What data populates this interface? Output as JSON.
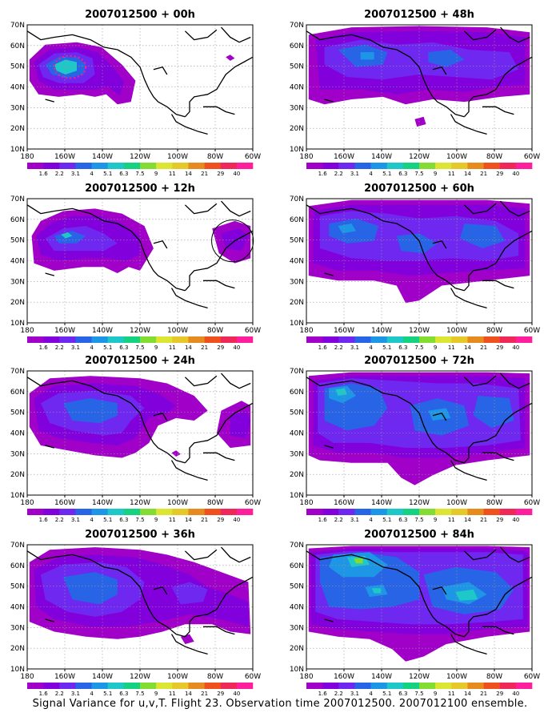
{
  "caption": "Signal Variance for u,v,T. Flight 23. Observation time 2007012500. 2007012100 ensemble.",
  "colorbar": {
    "levels": [
      "1.6",
      "2.2",
      "3.1",
      "4",
      "5.1",
      "6.3",
      "7.5",
      "9",
      "11",
      "14",
      "21",
      "29",
      "40"
    ],
    "colors": [
      "#a000c8",
      "#8200dc",
      "#6e28f0",
      "#2864e6",
      "#1e96e6",
      "#1ec8c8",
      "#14d282",
      "#82dc32",
      "#dce632",
      "#e6c828",
      "#e68c1e",
      "#f0501e",
      "#f0285a",
      "#ff1e9b"
    ]
  },
  "map": {
    "x_ticks": [
      "180",
      "160W",
      "140W",
      "120W",
      "100W",
      "80W",
      "60W"
    ],
    "y_ticks": [
      "10N",
      "20N",
      "30N",
      "40N",
      "50N",
      "60N",
      "70N"
    ],
    "grid": true
  },
  "chart_data": [
    {
      "type": "heatmap",
      "title": "2007012500 + 00h",
      "lead_hours": 0,
      "field": "signal variance u,v,T",
      "xlim": [
        "180",
        "60W"
      ],
      "ylim": [
        "10N",
        "70N"
      ],
      "peak_level": "7.5",
      "region": "North Pacific near 165W 47N; observation circle over North Pacific"
    },
    {
      "type": "heatmap",
      "title": "2007012500 + 12h",
      "lead_hours": 12,
      "field": "signal variance u,v,T",
      "xlim": [
        "180",
        "60W"
      ],
      "ylim": [
        "10N",
        "70N"
      ],
      "peak_level": "7.5",
      "region": "North Pacific, 165W-125W; observation circle off US East Coast"
    },
    {
      "type": "heatmap",
      "title": "2007012500 + 24h",
      "lead_hours": 24,
      "field": "signal variance u,v,T",
      "xlim": [
        "180",
        "60W"
      ],
      "ylim": [
        "10N",
        "70N"
      ],
      "peak_level": "5.1",
      "region": "North Pacific to western North America; western Atlantic"
    },
    {
      "type": "heatmap",
      "title": "2007012500 + 36h",
      "lead_hours": 36,
      "field": "signal variance u,v,T",
      "xlim": [
        "180",
        "60W"
      ],
      "ylim": [
        "10N",
        "70N"
      ],
      "peak_level": "5.1",
      "region": "North Pacific, western and central North America"
    },
    {
      "type": "heatmap",
      "title": "2007012500 + 48h",
      "lead_hours": 48,
      "field": "signal variance u,v,T",
      "xlim": [
        "180",
        "60W"
      ],
      "ylim": [
        "10N",
        "70N"
      ],
      "peak_level": "6.3",
      "region": "Across North Pacific and North America"
    },
    {
      "type": "heatmap",
      "title": "2007012500 + 60h",
      "lead_hours": 60,
      "field": "signal variance u,v,T",
      "xlim": [
        "180",
        "60W"
      ],
      "ylim": [
        "10N",
        "70N"
      ],
      "peak_level": "6.3",
      "region": "Across North Pacific and North America"
    },
    {
      "type": "heatmap",
      "title": "2007012500 + 72h",
      "lead_hours": 72,
      "field": "signal variance u,v,T",
      "xlim": [
        "180",
        "60W"
      ],
      "ylim": [
        "10N",
        "70N"
      ],
      "peak_level": "7.5",
      "region": "Across domain, maximum over Alaska"
    },
    {
      "type": "heatmap",
      "title": "2007012500 + 84h",
      "lead_hours": 84,
      "field": "signal variance u,v,T",
      "xlim": [
        "180",
        "60W"
      ],
      "ylim": [
        "10N",
        "70N"
      ],
      "peak_level": "9",
      "region": "Across domain, maxima over Alaska, Gulf of Alaska and central-eastern US"
    }
  ]
}
